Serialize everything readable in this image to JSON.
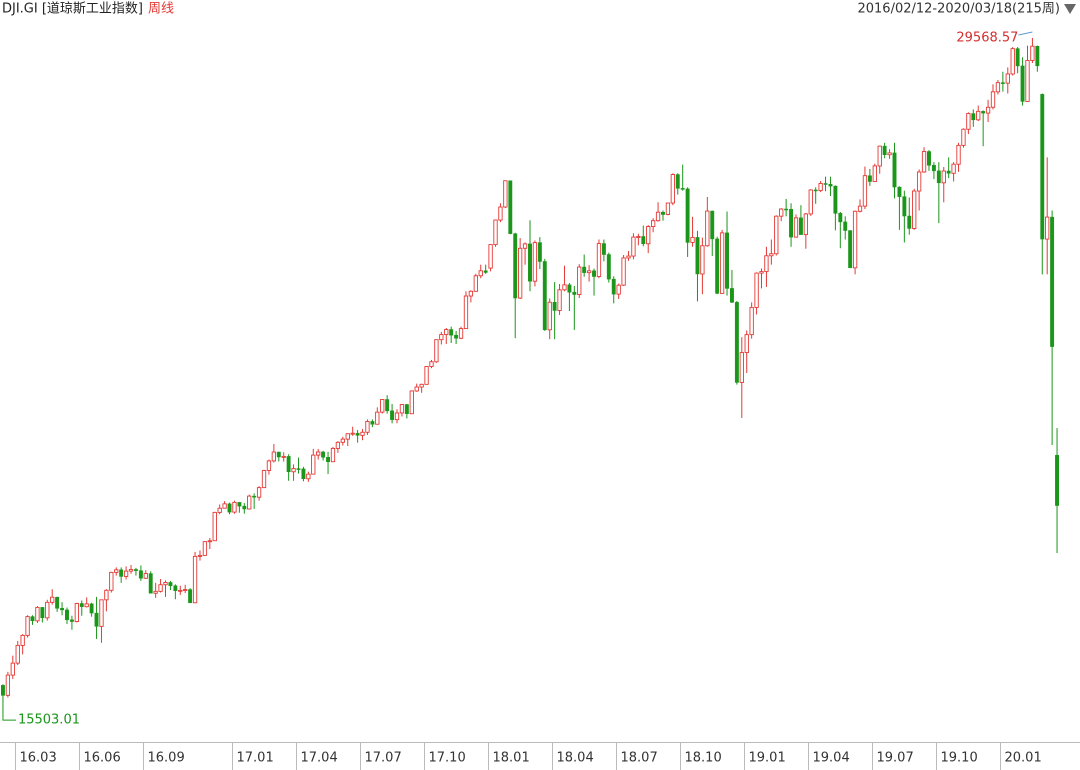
{
  "chart_data": {
    "type": "candlestick",
    "title": "DJI.GI [道琼斯工业指数]",
    "subtitle": "周线",
    "date_range": "2016/02/12-2020/03/18(215周)",
    "max_label": "29568.57",
    "min_label": "15503.01",
    "up_color": "#e53935",
    "down_color": "#1a961a",
    "xlim": [
      -0.6,
      214.6
    ],
    "ylim": [
      15050,
      29940
    ],
    "xticks": [
      {
        "value": 3,
        "label": "16.03"
      },
      {
        "value": 16,
        "label": "16.06"
      },
      {
        "value": 29,
        "label": "16.09"
      },
      {
        "value": 47,
        "label": "17.01"
      },
      {
        "value": 60,
        "label": "17.04"
      },
      {
        "value": 73,
        "label": "17.07"
      },
      {
        "value": 86,
        "label": "17.10"
      },
      {
        "value": 99,
        "label": "18.01"
      },
      {
        "value": 112,
        "label": "18.04"
      },
      {
        "value": 125,
        "label": "18.07"
      },
      {
        "value": 138,
        "label": "18.10"
      },
      {
        "value": 151,
        "label": "19.01"
      },
      {
        "value": 164,
        "label": "19.04"
      },
      {
        "value": 177,
        "label": "19.07"
      },
      {
        "value": 190,
        "label": "19.10"
      },
      {
        "value": 203,
        "label": "20.01"
      }
    ],
    "candles": [
      [
        16180,
        16203,
        15503.01,
        15973
      ],
      [
        15973,
        16460,
        15930,
        16392
      ],
      [
        16392,
        16795,
        16310,
        16640
      ],
      [
        16640,
        17099,
        16600,
        17006
      ],
      [
        17006,
        17240,
        16821,
        17213
      ],
      [
        17213,
        17630,
        17170,
        17602
      ],
      [
        17602,
        17630,
        17430,
        17515
      ],
      [
        17515,
        17820,
        17470,
        17792
      ],
      [
        17792,
        17800,
        17480,
        17577
      ],
      [
        17577,
        17950,
        17520,
        17897
      ],
      [
        17897,
        18168,
        17850,
        18003
      ],
      [
        18003,
        18015,
        17700,
        17773
      ],
      [
        17773,
        17900,
        17630,
        17740
      ],
      [
        17740,
        17790,
        17450,
        17535
      ],
      [
        17535,
        17620,
        17330,
        17500
      ],
      [
        17500,
        17890,
        17480,
        17873
      ],
      [
        17873,
        17935,
        17620,
        17807
      ],
      [
        17807,
        18000,
        17790,
        17865
      ],
      [
        17865,
        17890,
        17600,
        17675
      ],
      [
        17675,
        18010,
        17140,
        17400
      ],
      [
        17400,
        17950,
        17060,
        17949
      ],
      [
        17949,
        18170,
        17710,
        18146
      ],
      [
        18146,
        18530,
        18100,
        18516
      ],
      [
        18516,
        18620,
        18450,
        18570
      ],
      [
        18570,
        18620,
        18300,
        18432
      ],
      [
        18432,
        18640,
        18370,
        18543
      ],
      [
        18543,
        18670,
        18490,
        18576
      ],
      [
        18576,
        18610,
        18450,
        18552
      ],
      [
        18552,
        18660,
        18340,
        18395
      ],
      [
        18395,
        18560,
        18380,
        18492
      ],
      [
        18492,
        18540,
        18080,
        18085
      ],
      [
        18085,
        18300,
        17990,
        18124
      ],
      [
        18124,
        18380,
        18100,
        18261
      ],
      [
        18261,
        18350,
        18010,
        18308
      ],
      [
        18308,
        18340,
        18150,
        18240
      ],
      [
        18240,
        18270,
        17960,
        18138
      ],
      [
        18138,
        18240,
        18050,
        18145
      ],
      [
        18145,
        18260,
        18090,
        18161
      ],
      [
        18161,
        18190,
        17880,
        17888
      ],
      [
        17888,
        18940,
        17880,
        18847
      ],
      [
        18847,
        18970,
        18760,
        18868
      ],
      [
        18868,
        19160,
        18860,
        19152
      ],
      [
        19152,
        19230,
        19000,
        19171
      ],
      [
        19171,
        19770,
        19170,
        19757
      ],
      [
        19757,
        19920,
        19720,
        19843
      ],
      [
        19843,
        19990,
        19840,
        19934
      ],
      [
        19934,
        19960,
        19720,
        19763
      ],
      [
        19763,
        19999,
        19730,
        19964
      ],
      [
        19964,
        19970,
        19750,
        19886
      ],
      [
        19886,
        19950,
        19730,
        19827
      ],
      [
        19827,
        20126,
        19820,
        20094
      ],
      [
        20094,
        20150,
        19830,
        20071
      ],
      [
        20071,
        20300,
        20000,
        20269
      ],
      [
        20269,
        20640,
        20260,
        20624
      ],
      [
        20624,
        20850,
        20540,
        20822
      ],
      [
        20822,
        21170,
        20790,
        21005
      ],
      [
        21005,
        21010,
        20810,
        20903
      ],
      [
        20903,
        21000,
        20810,
        20915
      ],
      [
        20915,
        20960,
        20410,
        20597
      ],
      [
        20597,
        20750,
        20410,
        20663
      ],
      [
        20663,
        20890,
        20560,
        20656
      ],
      [
        20656,
        20700,
        20400,
        20453
      ],
      [
        20453,
        20600,
        20390,
        20548
      ],
      [
        20548,
        21070,
        20540,
        20941
      ],
      [
        20941,
        21070,
        20850,
        21007
      ],
      [
        21007,
        21030,
        20830,
        20897
      ],
      [
        20897,
        21010,
        20550,
        20805
      ],
      [
        20805,
        21110,
        20800,
        21080
      ],
      [
        21080,
        21230,
        20990,
        21206
      ],
      [
        21206,
        21320,
        21140,
        21272
      ],
      [
        21272,
        21390,
        21130,
        21384
      ],
      [
        21384,
        21530,
        21340,
        21395
      ],
      [
        21395,
        21460,
        21200,
        21350
      ],
      [
        21350,
        21480,
        21250,
        21414
      ],
      [
        21414,
        21680,
        21360,
        21638
      ],
      [
        21638,
        21680,
        21520,
        21580
      ],
      [
        21580,
        21930,
        21580,
        21830
      ],
      [
        21830,
        22100,
        21800,
        22092
      ],
      [
        22092,
        22180,
        21800,
        21858
      ],
      [
        21858,
        22000,
        21600,
        21675
      ],
      [
        21675,
        21890,
        21600,
        21814
      ],
      [
        21814,
        22000,
        21740,
        21988
      ],
      [
        21988,
        22000,
        21700,
        21798
      ],
      [
        21798,
        22280,
        21800,
        22268
      ],
      [
        22268,
        22420,
        22250,
        22350
      ],
      [
        22350,
        22420,
        22230,
        22405
      ],
      [
        22405,
        22780,
        22400,
        22774
      ],
      [
        22774,
        22910,
        22740,
        22872
      ],
      [
        22872,
        23330,
        22850,
        23329
      ],
      [
        23329,
        23490,
        23230,
        23434
      ],
      [
        23434,
        23570,
        23240,
        23539
      ],
      [
        23539,
        23600,
        23260,
        23422
      ],
      [
        23422,
        23510,
        23240,
        23358
      ],
      [
        23358,
        23600,
        23340,
        23558
      ],
      [
        23558,
        24330,
        23560,
        24232
      ],
      [
        24232,
        24350,
        24100,
        24329
      ],
      [
        24329,
        24690,
        24320,
        24651
      ],
      [
        24651,
        24880,
        24600,
        24754
      ],
      [
        24754,
        24880,
        24690,
        24719
      ],
      [
        24809,
        25300,
        24740,
        25295
      ],
      [
        25295,
        25810,
        25250,
        25803
      ],
      [
        25803,
        26150,
        25760,
        26072
      ],
      [
        26072,
        26620,
        26050,
        26616
      ],
      [
        26616,
        26620,
        25510,
        25521
      ],
      [
        25521,
        25540,
        23360,
        24190
      ],
      [
        24190,
        25430,
        24170,
        25219
      ],
      [
        25219,
        25340,
        24880,
        25310
      ],
      [
        25310,
        25800,
        24330,
        24538
      ],
      [
        24538,
        25380,
        24430,
        25336
      ],
      [
        25336,
        25450,
        24790,
        24946
      ],
      [
        24946,
        25000,
        23510,
        23533
      ],
      [
        23533,
        24180,
        23340,
        24103
      ],
      [
        24103,
        24520,
        23340,
        23933
      ],
      [
        23933,
        24480,
        23840,
        24360
      ],
      [
        24360,
        24860,
        24330,
        24463
      ],
      [
        24463,
        24500,
        23920,
        24311
      ],
      [
        24311,
        24440,
        23530,
        24263
      ],
      [
        24263,
        24890,
        24190,
        24831
      ],
      [
        24831,
        25090,
        24630,
        24715
      ],
      [
        24715,
        24870,
        24530,
        24753
      ],
      [
        24753,
        24800,
        24240,
        24635
      ],
      [
        24635,
        25400,
        24600,
        25317
      ],
      [
        25317,
        25400,
        24950,
        25090
      ],
      [
        25090,
        25130,
        24510,
        24581
      ],
      [
        24581,
        24640,
        24080,
        24271
      ],
      [
        24271,
        24490,
        24170,
        24456
      ],
      [
        24456,
        25080,
        24440,
        25019
      ],
      [
        25019,
        25160,
        24960,
        25058
      ],
      [
        25058,
        25530,
        24990,
        25451
      ],
      [
        25451,
        25520,
        25280,
        25463
      ],
      [
        25463,
        25690,
        25260,
        25313
      ],
      [
        25313,
        25700,
        25120,
        25669
      ],
      [
        25669,
        25840,
        25550,
        25790
      ],
      [
        25790,
        26170,
        25770,
        25965
      ],
      [
        25965,
        26000,
        25790,
        25917
      ],
      [
        25917,
        26160,
        25900,
        26155
      ],
      [
        26155,
        26770,
        26110,
        26744
      ],
      [
        26744,
        26770,
        26330,
        26458
      ],
      [
        26458,
        26950,
        26410,
        26447
      ],
      [
        26447,
        26480,
        25040,
        25340
      ],
      [
        25340,
        25870,
        25250,
        25444
      ],
      [
        25444,
        25580,
        24120,
        24688
      ],
      [
        24688,
        25440,
        24270,
        25271
      ],
      [
        25271,
        26280,
        25250,
        25989
      ],
      [
        25989,
        26000,
        25060,
        25413
      ],
      [
        25413,
        25460,
        24270,
        24286
      ],
      [
        24286,
        25600,
        24280,
        25538
      ],
      [
        25538,
        25980,
        24240,
        24389
      ],
      [
        24389,
        24770,
        24090,
        24101
      ],
      [
        24101,
        24130,
        22400,
        22445
      ],
      [
        22445,
        23380,
        21710,
        23062
      ],
      [
        23062,
        23520,
        22640,
        23433
      ],
      [
        23433,
        24100,
        23350,
        23996
      ],
      [
        23996,
        24720,
        23850,
        24706
      ],
      [
        24706,
        24800,
        24390,
        24737
      ],
      [
        24737,
        25250,
        24420,
        25064
      ],
      [
        25064,
        25400,
        24880,
        25106
      ],
      [
        25106,
        25900,
        25070,
        25883
      ],
      [
        25883,
        26050,
        25780,
        26031
      ],
      [
        26031,
        26240,
        25880,
        26026
      ],
      [
        26026,
        26150,
        25250,
        25450
      ],
      [
        25450,
        25920,
        25440,
        25849
      ],
      [
        25849,
        26110,
        25500,
        25502
      ],
      [
        25502,
        25950,
        25210,
        25929
      ],
      [
        25929,
        26440,
        25890,
        26425
      ],
      [
        26425,
        26480,
        26140,
        26412
      ],
      [
        26412,
        26610,
        26380,
        26559
      ],
      [
        26559,
        26700,
        26400,
        26543
      ],
      [
        26543,
        26700,
        26300,
        26505
      ],
      [
        26505,
        26520,
        25590,
        25942
      ],
      [
        25942,
        25970,
        25220,
        25764
      ],
      [
        25764,
        25880,
        25400,
        25586
      ],
      [
        25586,
        25590,
        24810,
        24815
      ],
      [
        24815,
        26000,
        24680,
        25984
      ],
      [
        25984,
        26230,
        25960,
        26090
      ],
      [
        26090,
        26910,
        26030,
        26720
      ],
      [
        26720,
        26860,
        26510,
        26600
      ],
      [
        26600,
        26970,
        26590,
        26922
      ],
      [
        26922,
        27340,
        26760,
        27332
      ],
      [
        27332,
        27400,
        27080,
        27154
      ],
      [
        27154,
        27270,
        27070,
        27192
      ],
      [
        27192,
        27400,
        26250,
        26485
      ],
      [
        26485,
        26500,
        25600,
        26287
      ],
      [
        26287,
        26410,
        25340,
        25886
      ],
      [
        25886,
        26270,
        25500,
        25629
      ],
      [
        25629,
        26450,
        25600,
        26403
      ],
      [
        26403,
        26850,
        26000,
        26797
      ],
      [
        26797,
        27310,
        26780,
        27220
      ],
      [
        27220,
        27250,
        26820,
        26935
      ],
      [
        26935,
        27000,
        26650,
        26820
      ],
      [
        26820,
        27000,
        25740,
        26573
      ],
      [
        26573,
        26900,
        26170,
        26817
      ],
      [
        26817,
        27100,
        26670,
        26770
      ],
      [
        26770,
        27000,
        26600,
        26958
      ],
      [
        26958,
        27400,
        26800,
        27347
      ],
      [
        27347,
        27700,
        27300,
        27681
      ],
      [
        27681,
        28030,
        27580,
        28005
      ],
      [
        28005,
        28090,
        27730,
        27876
      ],
      [
        27876,
        28170,
        27850,
        28051
      ],
      [
        28051,
        28070,
        27330,
        28015
      ],
      [
        28015,
        28290,
        27830,
        28135
      ],
      [
        28135,
        28610,
        28090,
        28455
      ],
      [
        28455,
        28700,
        28400,
        28645
      ],
      [
        28645,
        28870,
        28460,
        28634
      ],
      [
        28634,
        28960,
        28420,
        28824
      ],
      [
        28824,
        29380,
        28790,
        29348
      ],
      [
        29348,
        29380,
        28840,
        28990
      ],
      [
        28990,
        29170,
        28170,
        28256
      ],
      [
        28256,
        29410,
        28250,
        29102
      ],
      [
        29102,
        29568.57,
        29050,
        29398
      ],
      [
        29398,
        29410,
        28870,
        28992
      ],
      [
        28402,
        28420,
        24680,
        25409
      ],
      [
        25409,
        27100,
        24680,
        25864
      ],
      [
        25864,
        26000,
        21150,
        23186
      ],
      [
        20940,
        21500,
        18917,
        19899
      ]
    ]
  }
}
